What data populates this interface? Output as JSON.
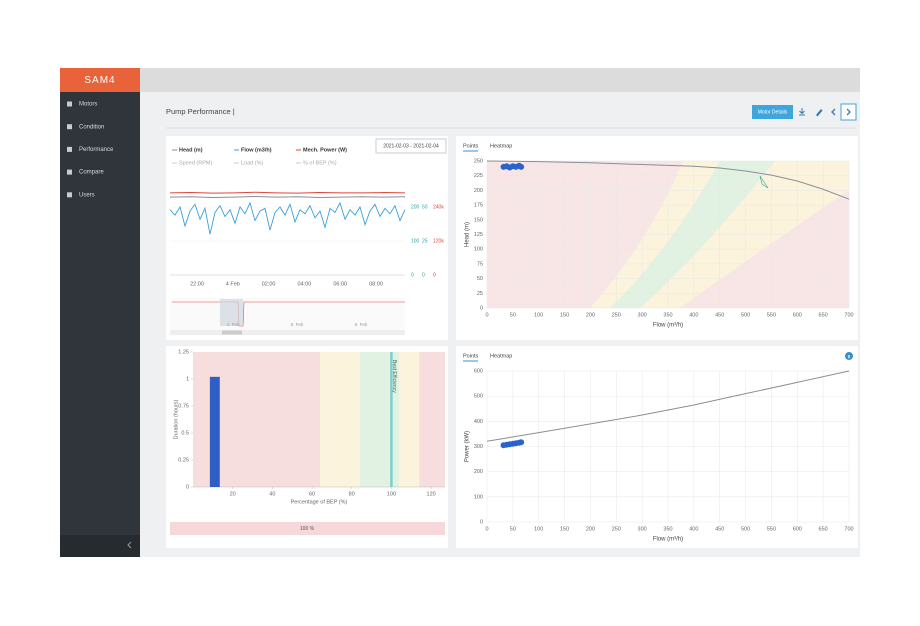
{
  "header": {
    "logo": "SAM4"
  },
  "sidebar": {
    "menu": [
      "Motors",
      "Condition",
      "Performance",
      "Compare",
      "Users"
    ]
  },
  "page": {
    "title": "Pump Performance |",
    "button": "Motor Details"
  },
  "timeseries": {
    "legend_inactive": [
      "Speed (RPM)",
      "Load (%)",
      "% of BEP (%)"
    ],
    "date_range": "2021-02-03 - 2021-02-04",
    "x_labels": [
      "22:00",
      "4 Feb",
      "02:00",
      "04:00",
      "06:00",
      "08:00"
    ],
    "navigator_labels": [
      "4. Feb",
      "5. Feb",
      "6. Feb"
    ],
    "axes": [
      {
        "ylim": [
          0,
          350
        ],
        "yticks": [
          0,
          100,
          200
        ],
        "color": "#2aa6a0"
      },
      {
        "ylim": [
          0,
          87.5
        ],
        "yticks": [
          0,
          25,
          50
        ],
        "color": "#2aa6a0"
      },
      {
        "ylim": [
          0,
          420000
        ],
        "yticks": [
          0,
          {
            "value": 120000,
            "label": "120k"
          },
          {
            "value": 240000,
            "label": "240k"
          }
        ],
        "color": "#e0463a"
      }
    ],
    "series": [
      {
        "name": "Head (m)",
        "color": "#8a8f96",
        "axis": 0,
        "values": [
          229,
          230,
          228,
          229,
          231,
          229,
          230,
          228,
          229,
          230,
          229,
          230
        ]
      },
      {
        "name": "Flow (m3/h)",
        "color": "#3b9fd8",
        "axis": 1,
        "values": [
          48,
          44,
          50,
          36,
          47,
          52,
          41,
          49,
          30,
          46,
          51,
          43,
          48,
          38,
          50,
          45,
          53,
          40,
          47,
          49,
          33,
          46,
          50,
          44,
          52,
          39,
          48,
          45,
          51,
          42,
          47,
          35,
          49,
          46,
          53,
          41,
          48,
          44,
          50,
          37,
          47,
          52,
          43,
          49,
          45,
          51,
          40,
          48
        ]
      },
      {
        "name": "Mech. Power (W)",
        "color": "#e0463a",
        "axis": 2,
        "values": [
          290000,
          291000,
          289000,
          290000,
          292000,
          290000,
          289000,
          291000,
          290000,
          290000,
          291000,
          290000
        ]
      }
    ]
  },
  "head_chart": {
    "tabs": [
      "Points",
      "Heatmap"
    ],
    "ylabel": "Head (m)",
    "xlabel": "Flow (m³/h)",
    "xlim": [
      0,
      700
    ],
    "ylim": [
      0,
      250
    ],
    "xticks": [
      0,
      50,
      100,
      150,
      200,
      250,
      300,
      350,
      400,
      450,
      500,
      550,
      600,
      650,
      700
    ],
    "yticks": [
      0,
      25,
      50,
      75,
      100,
      125,
      150,
      175,
      200,
      225,
      250
    ],
    "curve": {
      "x": [
        0,
        100,
        200,
        300,
        400,
        450,
        500,
        550,
        600,
        650,
        700
      ],
      "y": [
        250,
        249,
        247,
        244,
        241,
        238,
        233,
        226,
        216,
        202,
        185
      ]
    },
    "points": {
      "x": [
        32,
        38,
        44,
        50,
        56,
        62,
        66
      ],
      "y": [
        240,
        241,
        239,
        241,
        240,
        242,
        240
      ]
    }
  },
  "power_chart": {
    "tabs": [
      "Points",
      "Heatmap"
    ],
    "ylabel": "Power (kW)",
    "xlabel": "Flow (m³/h)",
    "xlim": [
      0,
      700
    ],
    "ylim": [
      0,
      600
    ],
    "xticks": [
      0,
      50,
      100,
      150,
      200,
      250,
      300,
      350,
      400,
      450,
      500,
      550,
      600,
      650,
      700
    ],
    "yticks": [
      0,
      100,
      200,
      300,
      400,
      500,
      600
    ],
    "curve": {
      "x": [
        0,
        100,
        200,
        300,
        400,
        500,
        600,
        700
      ],
      "y": [
        321,
        355,
        390,
        425,
        465,
        510,
        555,
        600
      ]
    },
    "points": {
      "x": [
        32,
        38,
        44,
        50,
        56,
        62,
        66
      ],
      "y": [
        305,
        307,
        309,
        311,
        313,
        315,
        317
      ]
    }
  },
  "bep_chart": {
    "ylabel": "Duration (hours)",
    "xlabel": "Percentage of BEP (%)",
    "xlim": [
      0,
      127
    ],
    "ylim": [
      0,
      1.25
    ],
    "xticks": [
      20,
      40,
      60,
      80,
      100,
      120
    ],
    "yticks": [
      0,
      0.25,
      0.5,
      0.75,
      1,
      1.25
    ],
    "zones": [
      {
        "from": 0,
        "to": 64,
        "color": "#f6dede"
      },
      {
        "from": 64,
        "to": 84,
        "color": "#fbf3dc"
      },
      {
        "from": 84,
        "to": 104,
        "color": "#e2f2e2"
      },
      {
        "from": 104,
        "to": 114,
        "color": "#fbf3dc"
      },
      {
        "from": 114,
        "to": 127,
        "color": "#f6dede"
      }
    ],
    "bep_line": 100,
    "annotation": "Best Efficiency",
    "bars": [
      {
        "x": 11,
        "width": 5,
        "value": 1.02
      }
    ],
    "footer": "100 %"
  }
}
